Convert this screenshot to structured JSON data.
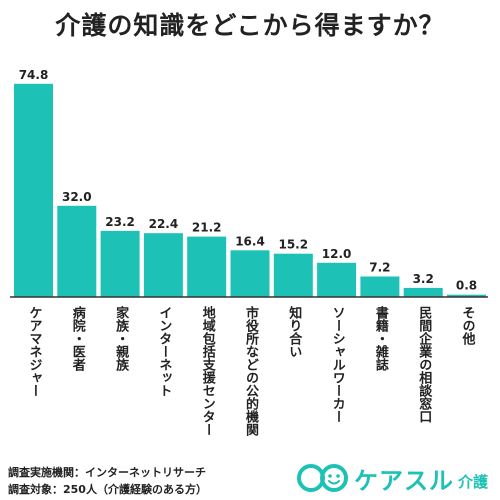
{
  "chart_data": {
    "type": "bar",
    "title": "介護の知識をどこから得ますか？",
    "categories": [
      "ケアマネジャー",
      "病院・医者",
      "家族・親族",
      "インターネット",
      "地域包括支援センター",
      "市役所などの公的機関",
      "知り合い",
      "ソーシャルワーカー",
      "書籍・雑誌",
      "民間企業の相談窓口",
      "その他"
    ],
    "values": [
      74.8,
      32.0,
      23.2,
      22.4,
      21.2,
      16.4,
      15.2,
      12.0,
      7.2,
      3.2,
      0.8
    ],
    "value_labels": [
      "74.8",
      "32.0",
      "23.2",
      "22.4",
      "21.2",
      "16.4",
      "15.2",
      "12.0",
      "7.2",
      "3.2",
      "0.8"
    ],
    "ylim": [
      0,
      80
    ],
    "xlabel": "",
    "ylabel": "",
    "grid": false,
    "bar_color": "#1ec1b6",
    "axis_color": "#333333"
  },
  "footer": {
    "source": "調査実施機関：インターネットリサーチ",
    "target": "調査対象：250人（介護経験のある方）"
  },
  "logo": {
    "brand": "ケアスル",
    "suffix": "介護",
    "color": "#1ec1b6"
  }
}
